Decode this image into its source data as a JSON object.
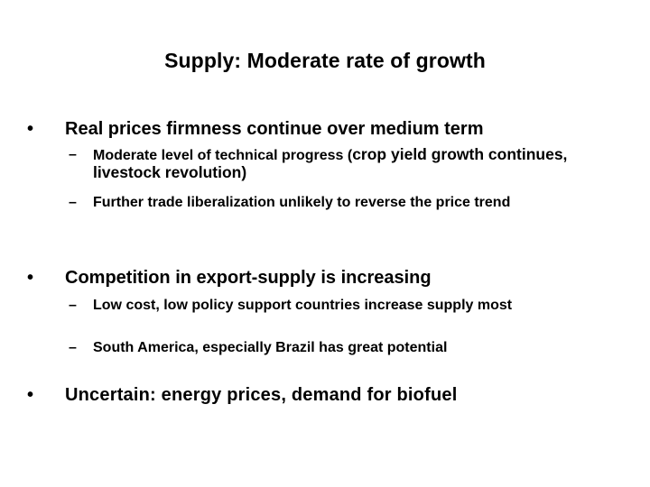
{
  "slide": {
    "title": "Supply: Moderate rate of growth",
    "bullets": [
      {
        "marker": "•",
        "text": "Real prices firmness continue over medium term",
        "sub": [
          {
            "marker": "–",
            "text_a": "Moderate level of technical progress (",
            "text_b": "crop yield growth continues, livestock revolution)"
          },
          {
            "marker": "–",
            "text": "Further trade liberalization unlikely to reverse the price trend"
          }
        ]
      },
      {
        "marker": "•",
        "text": "Competition in export-supply is increasing",
        "sub": [
          {
            "marker": "–",
            "text": "Low cost, low policy support countries increase supply most"
          },
          {
            "marker": "–",
            "text": "South America, especially Brazil has great potential"
          }
        ]
      },
      {
        "marker": "•",
        "text": "Uncertain: energy prices, demand for biofuel"
      }
    ]
  }
}
